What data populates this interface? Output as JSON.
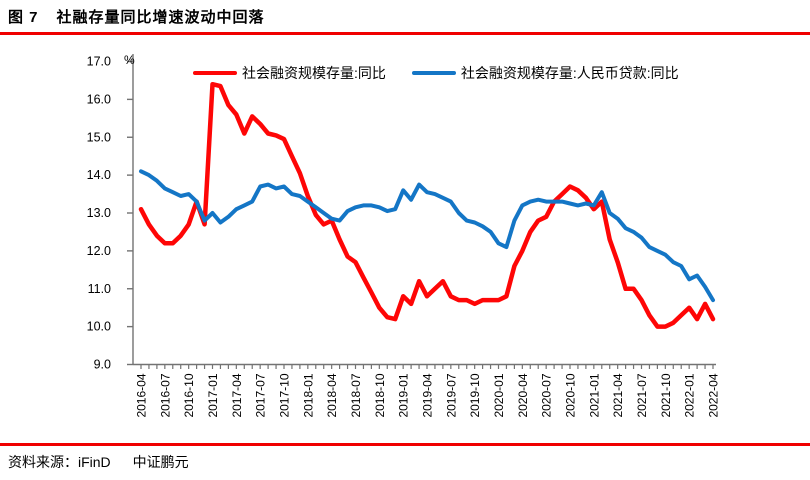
{
  "header": {
    "figure_label": "图 7",
    "title": "社融存量同比增速波动中回落"
  },
  "footer": {
    "source_label": "资料来源：",
    "source_name": "iFinD",
    "brand": "中证鹏元"
  },
  "accent_color": "#f00000",
  "axis_color": "#737373",
  "chart_data": {
    "type": "line",
    "title": "",
    "unit_label": "%",
    "ylim": [
      9.0,
      17.0
    ],
    "ytick_step": 1.0,
    "yticks": [
      "17.0",
      "16.0",
      "15.0",
      "14.0",
      "13.0",
      "12.0",
      "11.0",
      "10.0",
      "9.0"
    ],
    "grid": false,
    "legend_position": "top",
    "x_interval": "monthly",
    "x_start": "2016-04",
    "x_end": "2022-04",
    "xtick_labels": [
      "2016-04",
      "2016-07",
      "2016-10",
      "2017-01",
      "2017-04",
      "2017-07",
      "2017-10",
      "2018-01",
      "2018-04",
      "2018-07",
      "2018-10",
      "2019-01",
      "2019-04",
      "2019-07",
      "2019-10",
      "2020-01",
      "2020-04",
      "2020-07",
      "2020-10",
      "2021-01",
      "2021-04",
      "2021-07",
      "2021-10",
      "2022-01",
      "2022-04"
    ],
    "series": [
      {
        "name": "社会融资规模存量:同比",
        "color": "#fe0606",
        "values": [
          13.1,
          12.7,
          12.4,
          12.2,
          12.2,
          12.4,
          12.7,
          13.3,
          12.7,
          16.4,
          16.35,
          15.85,
          15.6,
          15.1,
          15.55,
          15.35,
          15.1,
          15.05,
          14.95,
          14.5,
          14.05,
          13.45,
          12.95,
          12.7,
          12.8,
          12.3,
          11.85,
          11.7,
          11.3,
          10.9,
          10.5,
          10.25,
          10.2,
          10.8,
          10.6,
          11.2,
          10.8,
          11.0,
          11.2,
          10.8,
          10.7,
          10.7,
          10.6,
          10.7,
          10.7,
          10.7,
          10.8,
          11.6,
          12.0,
          12.5,
          12.8,
          12.9,
          13.3,
          13.5,
          13.7,
          13.6,
          13.4,
          13.1,
          13.3,
          12.3,
          11.7,
          11.0,
          11.0,
          10.7,
          10.3,
          10.0,
          10.0,
          10.1,
          10.3,
          10.5,
          10.2,
          10.6,
          10.2
        ]
      },
      {
        "name": "社会融资规模存量:人民币贷款:同比",
        "color": "#1476c6",
        "values": [
          14.1,
          14.0,
          13.85,
          13.65,
          13.55,
          13.45,
          13.5,
          13.3,
          12.8,
          13.0,
          12.75,
          12.9,
          13.1,
          13.2,
          13.3,
          13.7,
          13.75,
          13.65,
          13.7,
          13.5,
          13.45,
          13.3,
          13.15,
          13.0,
          12.85,
          12.8,
          13.05,
          13.15,
          13.2,
          13.2,
          13.15,
          13.05,
          13.1,
          13.6,
          13.35,
          13.75,
          13.55,
          13.5,
          13.4,
          13.3,
          13.0,
          12.8,
          12.75,
          12.65,
          12.5,
          12.2,
          12.1,
          12.8,
          13.2,
          13.3,
          13.35,
          13.3,
          13.3,
          13.3,
          13.25,
          13.2,
          13.25,
          13.2,
          13.55,
          13.0,
          12.85,
          12.6,
          12.5,
          12.35,
          12.1,
          12.0,
          11.9,
          11.7,
          11.6,
          11.25,
          11.35,
          11.05,
          10.7
        ]
      }
    ]
  }
}
